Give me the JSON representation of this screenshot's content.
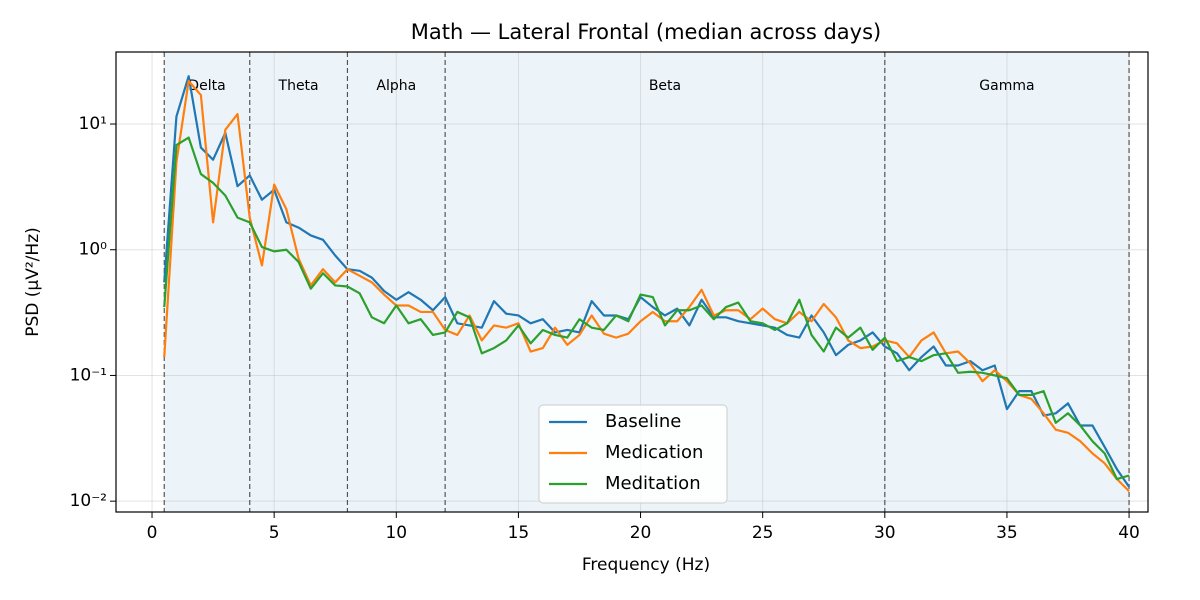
{
  "chart_data": {
    "type": "line",
    "title": "Math — Lateral Frontal  (median across days)",
    "xlabel": "Frequency (Hz)",
    "ylabel": "PSD (µV²/Hz)",
    "log_y": true,
    "grid": true,
    "legend": "lower center",
    "xlim": [
      -1.475,
      40.775
    ],
    "ylim": [
      0.0082,
      37.4
    ],
    "xticks": [
      0,
      5,
      10,
      15,
      20,
      25,
      30,
      35,
      40
    ],
    "yticks": [
      {
        "value": 0.01,
        "label": "10⁻²"
      },
      {
        "value": 0.1,
        "label": "10⁻¹"
      },
      {
        "value": 1,
        "label": "10⁰"
      },
      {
        "value": 10,
        "label": "10¹"
      }
    ],
    "bands": [
      {
        "name": "Delta",
        "range": [
          0.5,
          4
        ]
      },
      {
        "name": "Theta",
        "range": [
          4,
          8
        ]
      },
      {
        "name": "Alpha",
        "range": [
          8,
          12
        ]
      },
      {
        "name": "Beta",
        "range": [
          12,
          30
        ]
      },
      {
        "name": "Gamma",
        "range": [
          30,
          40
        ]
      }
    ],
    "x": [
      0.5,
      1,
      1.5,
      2,
      2.5,
      3,
      3.5,
      4,
      4.5,
      5,
      5.5,
      6,
      6.5,
      7,
      7.5,
      8,
      8.5,
      9,
      9.5,
      10,
      10.5,
      11,
      11.5,
      12,
      12.5,
      13,
      13.5,
      14,
      14.5,
      15,
      15.5,
      16,
      16.5,
      17,
      17.5,
      18,
      18.5,
      19,
      19.5,
      20,
      20.5,
      21,
      21.5,
      22,
      22.5,
      23,
      23.5,
      24,
      24.5,
      25,
      25.5,
      26,
      26.5,
      27,
      27.5,
      28,
      28.5,
      29,
      29.5,
      30,
      30.5,
      31,
      31.5,
      32,
      32.5,
      33,
      33.5,
      34,
      34.5,
      35,
      35.5,
      36,
      36.5,
      37,
      37.5,
      38,
      38.5,
      39,
      39.5,
      40
    ],
    "series": [
      {
        "name": "Baseline",
        "color": "#1f77b4",
        "values": [
          0.55,
          11.5,
          24,
          6.5,
          5.2,
          8.5,
          3.2,
          3.9,
          2.5,
          3.0,
          1.65,
          1.5,
          1.3,
          1.2,
          0.9,
          0.7,
          0.68,
          0.6,
          0.47,
          0.4,
          0.46,
          0.4,
          0.33,
          0.42,
          0.26,
          0.25,
          0.24,
          0.39,
          0.31,
          0.3,
          0.26,
          0.28,
          0.22,
          0.23,
          0.22,
          0.39,
          0.3,
          0.3,
          0.28,
          0.42,
          0.35,
          0.3,
          0.34,
          0.25,
          0.4,
          0.29,
          0.29,
          0.27,
          0.26,
          0.25,
          0.24,
          0.21,
          0.2,
          0.3,
          0.22,
          0.145,
          0.175,
          0.19,
          0.22,
          0.17,
          0.15,
          0.11,
          0.14,
          0.17,
          0.12,
          0.12,
          0.13,
          0.11,
          0.12,
          0.054,
          0.075,
          0.075,
          0.048,
          0.05,
          0.06,
          0.04,
          0.04,
          0.027,
          0.018,
          0.013
        ]
      },
      {
        "name": "Medication",
        "color": "#ff7f0e",
        "values": [
          0.14,
          5,
          22,
          17,
          1.65,
          9,
          12,
          1.8,
          0.75,
          3.3,
          2.1,
          0.85,
          0.52,
          0.7,
          0.55,
          0.7,
          0.62,
          0.55,
          0.44,
          0.36,
          0.36,
          0.32,
          0.32,
          0.23,
          0.21,
          0.3,
          0.19,
          0.25,
          0.24,
          0.26,
          0.155,
          0.165,
          0.24,
          0.175,
          0.21,
          0.3,
          0.215,
          0.2,
          0.215,
          0.27,
          0.32,
          0.27,
          0.27,
          0.35,
          0.48,
          0.3,
          0.33,
          0.33,
          0.28,
          0.34,
          0.28,
          0.26,
          0.32,
          0.27,
          0.37,
          0.29,
          0.19,
          0.165,
          0.17,
          0.19,
          0.18,
          0.14,
          0.19,
          0.22,
          0.15,
          0.155,
          0.125,
          0.09,
          0.11,
          0.09,
          0.07,
          0.065,
          0.05,
          0.037,
          0.035,
          0.03,
          0.024,
          0.02,
          0.015,
          0.012
        ]
      },
      {
        "name": "Meditation",
        "color": "#2ca02c",
        "values": [
          0.35,
          6.8,
          7.8,
          4,
          3.4,
          2.7,
          1.8,
          1.65,
          1.05,
          0.97,
          1.0,
          0.8,
          0.49,
          0.65,
          0.52,
          0.51,
          0.45,
          0.29,
          0.26,
          0.36,
          0.26,
          0.28,
          0.21,
          0.22,
          0.32,
          0.29,
          0.15,
          0.165,
          0.19,
          0.25,
          0.18,
          0.23,
          0.21,
          0.2,
          0.28,
          0.24,
          0.23,
          0.3,
          0.27,
          0.44,
          0.42,
          0.25,
          0.33,
          0.33,
          0.36,
          0.28,
          0.35,
          0.38,
          0.27,
          0.26,
          0.23,
          0.26,
          0.4,
          0.21,
          0.155,
          0.24,
          0.2,
          0.24,
          0.16,
          0.2,
          0.13,
          0.14,
          0.13,
          0.145,
          0.15,
          0.105,
          0.107,
          0.105,
          0.1,
          0.095,
          0.07,
          0.07,
          0.075,
          0.042,
          0.05,
          0.04,
          0.03,
          0.024,
          0.015,
          0.016
        ]
      }
    ]
  }
}
